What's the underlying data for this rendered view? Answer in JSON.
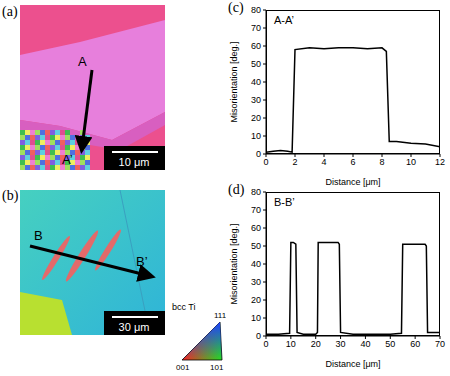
{
  "maps": [
    {
      "label": "(a)",
      "start": "A",
      "end": "A’",
      "scale_bar": "10 μm"
    },
    {
      "label": "(b)",
      "start": "B",
      "end": "B’",
      "scale_bar": "30 μm"
    }
  ],
  "ipf_legend": {
    "title": "bcc Ti",
    "corners": [
      "111",
      "001",
      "101"
    ]
  },
  "chart_data": [
    {
      "type": "line",
      "label": "(c)",
      "title": "A-A’",
      "x_label": "Distance [μm]",
      "y_label": "Misorientation [deg.]",
      "x": [
        0,
        0.5,
        1,
        1.5,
        1.8,
        2.0,
        3,
        4,
        5,
        6,
        7,
        8,
        8.3,
        8.5,
        9,
        10,
        11,
        12
      ],
      "values": [
        1,
        1.5,
        2,
        1.5,
        1,
        58,
        59,
        58.5,
        59,
        59,
        58.5,
        59,
        57,
        7,
        7,
        6,
        5.5,
        4
      ],
      "color": "#000000",
      "xlim": [
        0,
        12
      ],
      "xticks": [
        0,
        2,
        4,
        6,
        8,
        10,
        12
      ],
      "ylim": [
        0,
        80
      ],
      "yticks": [
        0,
        10,
        20,
        30,
        40,
        50,
        60,
        70,
        80
      ]
    },
    {
      "type": "line",
      "label": "(d)",
      "title": "B-B’",
      "x_label": "Distance [μm]",
      "y_label": "Misorientation [deg.]",
      "x": [
        0,
        5,
        9.5,
        10,
        11,
        12,
        12.5,
        15,
        20,
        20.7,
        21,
        25,
        29,
        29.5,
        30,
        35,
        40,
        45,
        50,
        54.5,
        55,
        60,
        64,
        64.5,
        65,
        70
      ],
      "values": [
        1,
        1,
        1.5,
        52,
        52,
        51,
        2,
        1,
        1,
        2,
        52,
        52,
        52,
        51,
        2,
        1,
        1,
        1,
        1,
        1.5,
        51,
        51,
        51,
        50,
        2,
        2
      ],
      "color": "#000000",
      "xlim": [
        0,
        70
      ],
      "xticks": [
        0,
        10,
        20,
        30,
        40,
        50,
        60,
        70
      ],
      "ylim": [
        0,
        80
      ],
      "yticks": [
        0,
        10,
        20,
        30,
        40,
        50,
        60,
        70,
        80
      ]
    }
  ]
}
